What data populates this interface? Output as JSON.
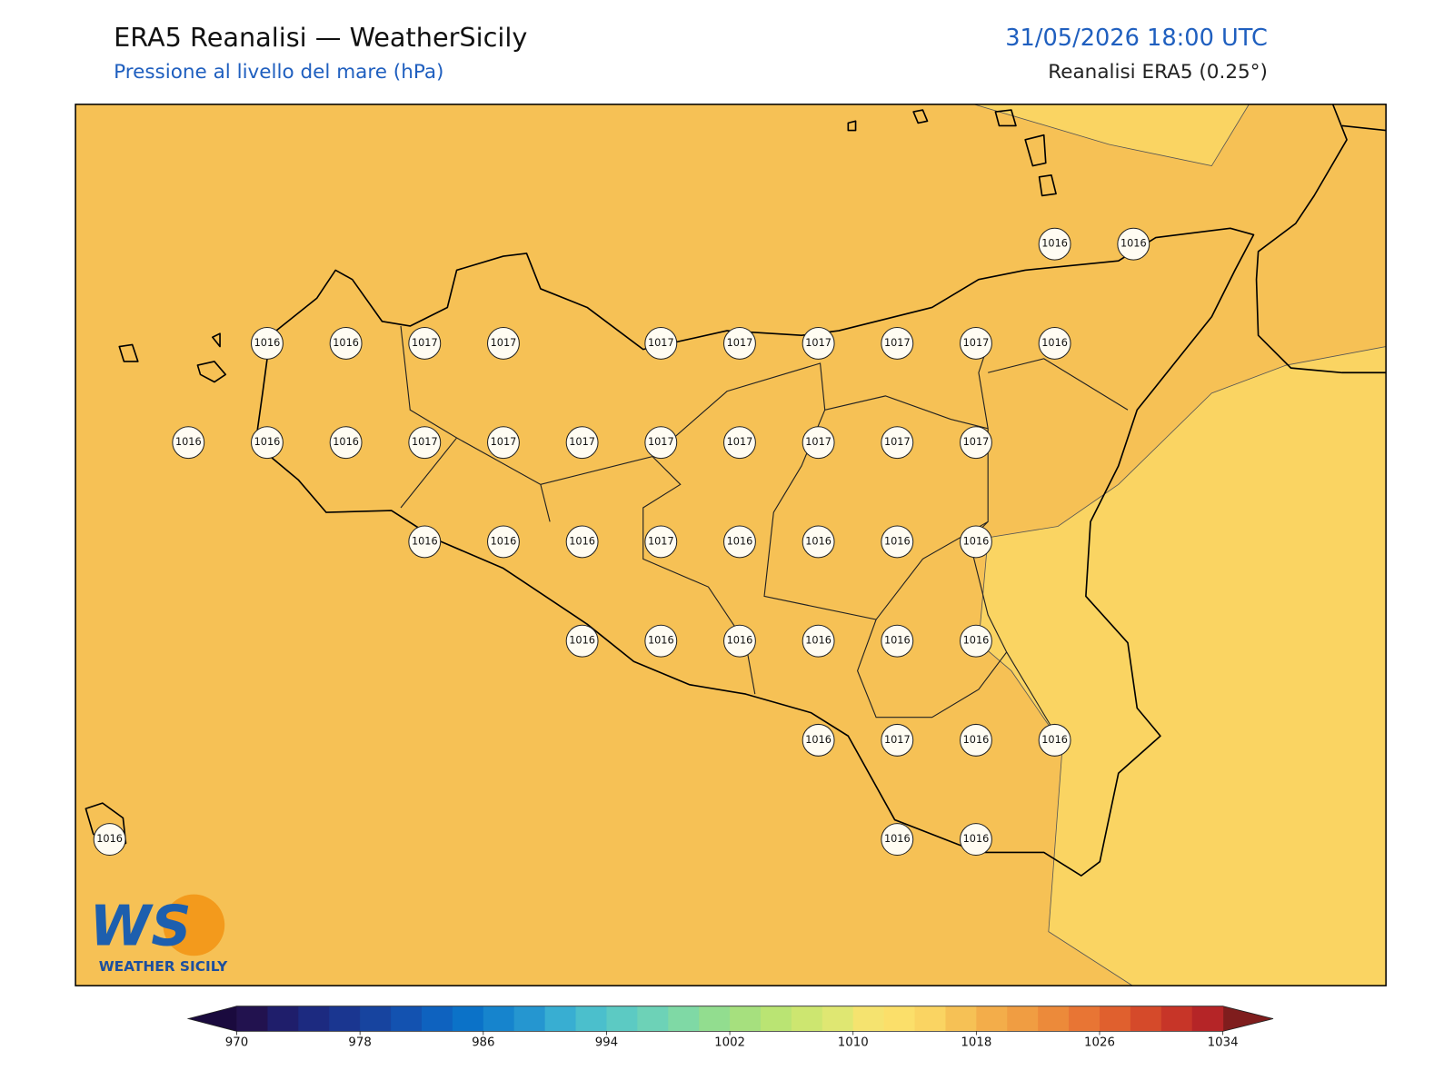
{
  "header": {
    "title": "ERA5 Reanalisi — WeatherSicily",
    "subtitle": "Pressione al livello del mare (hPa)",
    "datetime": "31/05/2026 18:00 UTC",
    "source": "Reanalisi ERA5 (0.25°)"
  },
  "map": {
    "background_color": "#f6c155",
    "stations": {
      "rows": [
        [
          null,
          null,
          null,
          null,
          null,
          null,
          null,
          null,
          null,
          null,
          null,
          null,
          1016,
          1016
        ],
        [
          null,
          null,
          1016,
          1016,
          1017,
          1017,
          null,
          1017,
          1017,
          1017,
          1017,
          1017,
          1016,
          null
        ],
        [
          null,
          1016,
          1016,
          1016,
          1017,
          1017,
          1017,
          1017,
          1017,
          1017,
          1017,
          1017,
          null,
          null
        ],
        [
          null,
          null,
          null,
          null,
          1016,
          1016,
          1016,
          1017,
          1016,
          1016,
          1016,
          1016,
          null,
          null
        ],
        [
          null,
          null,
          null,
          null,
          null,
          null,
          1016,
          1016,
          1016,
          1016,
          1016,
          1016,
          null,
          null
        ],
        [
          null,
          null,
          null,
          null,
          null,
          null,
          null,
          null,
          null,
          1016,
          1017,
          1016,
          1016,
          null
        ],
        [
          1016,
          null,
          null,
          null,
          null,
          null,
          null,
          null,
          null,
          null,
          1016,
          1016,
          null,
          null
        ]
      ]
    }
  },
  "colorbar": {
    "ticks": [
      970,
      978,
      986,
      994,
      1002,
      1010,
      1018,
      1026,
      1034
    ],
    "under_color": "#1a0a3e",
    "over_color": "#7f1d1d",
    "colors": [
      "#22124f",
      "#1f1e6b",
      "#1c2a80",
      "#1a3690",
      "#17449f",
      "#1352b0",
      "#0e62bf",
      "#0b72c8",
      "#1684cd",
      "#2596d0",
      "#38aed2",
      "#4bbfcc",
      "#5ccac3",
      "#6dd2b7",
      "#7fd9a5",
      "#92dd8f",
      "#a6e07e",
      "#bae473",
      "#cde670",
      "#dfe772",
      "#f5e36f",
      "#fbdf6a",
      "#fad462",
      "#f6c155",
      "#f3ad4a",
      "#f09d42",
      "#ec8a3a",
      "#e87534",
      "#e0602e",
      "#d54a2a",
      "#c73528",
      "#b52527"
    ]
  },
  "logo": {
    "text": "WS",
    "caption": "WEATHER SICILY"
  }
}
